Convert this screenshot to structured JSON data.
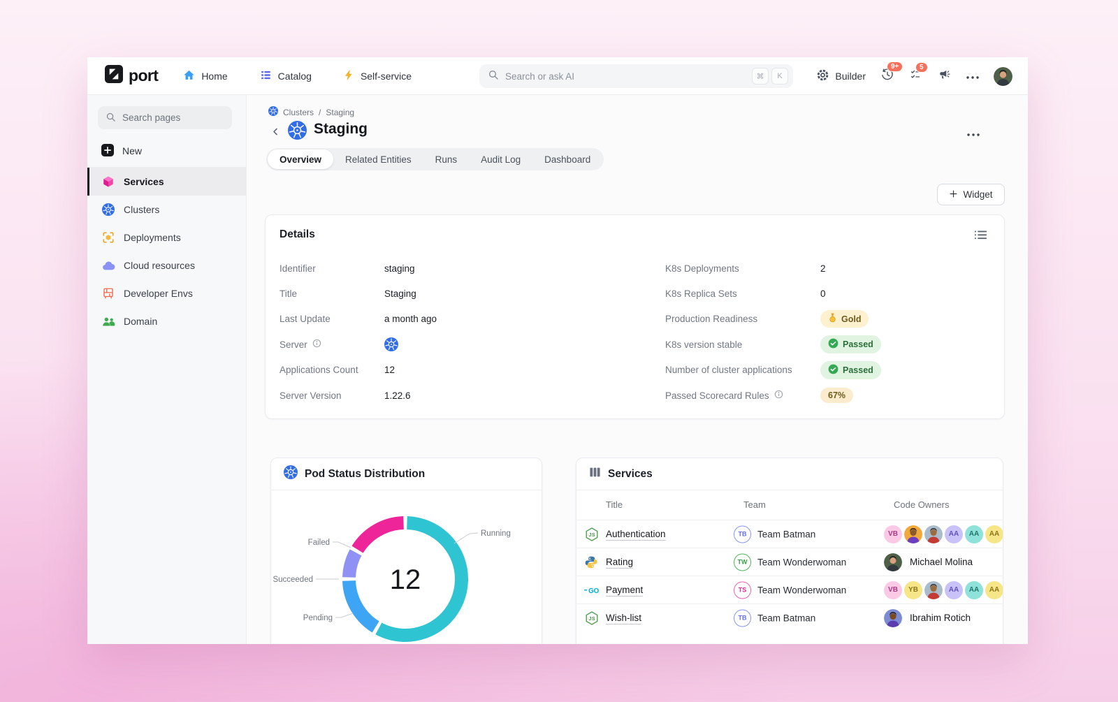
{
  "navbar": {
    "logo": "port",
    "nav_items": [
      {
        "label": "Home",
        "icon": "home-icon"
      },
      {
        "label": "Catalog",
        "icon": "catalog-icon"
      },
      {
        "label": "Self-service",
        "icon": "lightning-icon"
      }
    ],
    "search_placeholder": "Search or ask AI",
    "shortcut_keys": [
      "⌘",
      "K"
    ],
    "builder_label": "Builder",
    "history_badge": "9+",
    "tasks_badge": "5"
  },
  "sidebar": {
    "search_placeholder": "Search pages",
    "new_label": "New",
    "items": [
      {
        "label": "Services",
        "icon": "services-cube-icon",
        "active": true
      },
      {
        "label": "Clusters",
        "icon": "kubernetes-icon",
        "active": false
      },
      {
        "label": "Deployments",
        "icon": "deployments-icon",
        "active": false
      },
      {
        "label": "Cloud resources",
        "icon": "cloud-icon",
        "active": false
      },
      {
        "label": "Developer Envs",
        "icon": "rack-icon",
        "active": false
      },
      {
        "label": "Domain",
        "icon": "people-icon",
        "active": false
      }
    ]
  },
  "page": {
    "breadcrumb": {
      "root": "Clusters",
      "separator": "/",
      "current": "Staging"
    },
    "title": "Staging",
    "tabs": [
      {
        "label": "Overview",
        "active": true
      },
      {
        "label": "Related Entities",
        "active": false
      },
      {
        "label": "Runs",
        "active": false
      },
      {
        "label": "Audit Log",
        "active": false
      },
      {
        "label": "Dashboard",
        "active": false
      }
    ],
    "widget_button": "Widget"
  },
  "details": {
    "title": "Details",
    "left_fields": [
      {
        "label": "Identifier",
        "value": "staging",
        "type": "text",
        "info": false
      },
      {
        "label": "Title",
        "value": "Staging",
        "type": "text",
        "info": false
      },
      {
        "label": "Last Update",
        "value": "a month ago",
        "type": "text",
        "info": false
      },
      {
        "label": "Server",
        "value": "",
        "type": "k8s-icon",
        "info": true
      },
      {
        "label": "Applications Count",
        "value": "12",
        "type": "text",
        "info": false
      },
      {
        "label": "Server Version",
        "value": "1.22.6",
        "type": "text",
        "info": false
      }
    ],
    "right_fields": [
      {
        "label": "K8s Deployments",
        "value": "2",
        "type": "text",
        "info": false
      },
      {
        "label": "K8s Replica Sets",
        "value": "0",
        "type": "text",
        "info": false
      },
      {
        "label": "Production Readiness",
        "value": "Gold",
        "type": "badge-gold",
        "info": false
      },
      {
        "label": "K8s version stable",
        "value": "Passed",
        "type": "badge-passed",
        "info": false
      },
      {
        "label": "Number of cluster applications",
        "value": "Passed",
        "type": "badge-passed",
        "info": false
      },
      {
        "label": "Passed Scorecard Rules",
        "value": "67%",
        "type": "badge-pct",
        "info": true
      }
    ]
  },
  "chart_data": {
    "type": "pie",
    "donut": true,
    "title": "Pod Status Distribution",
    "total": 12,
    "total_label": "12",
    "legend_position": "callout-labels",
    "segments": [
      {
        "name": "Running",
        "value": 7,
        "color": "#2fc4d2"
      },
      {
        "name": "Pending",
        "value": 2,
        "color": "#3ea4f4"
      },
      {
        "name": "Succeeded",
        "value": 1,
        "color": "#8f92f4"
      },
      {
        "name": "Failed",
        "value": 2,
        "color": "#ee2599"
      }
    ]
  },
  "services": {
    "title": "Services",
    "columns": [
      "Title",
      "Team",
      "Code Owners"
    ],
    "rows": [
      {
        "icon": "nodejs-icon",
        "title": "Authentication",
        "team_initials": "TB",
        "team": "Team Batman",
        "team_color": "purple",
        "owners_type": "avatars",
        "owners": [
          {
            "type": "initials",
            "text": "VB",
            "bg": "#f9c9e6",
            "fg": "#a83a83"
          },
          {
            "type": "photo",
            "variant": "boy-yellow"
          },
          {
            "type": "photo",
            "variant": "man-red"
          },
          {
            "type": "initials",
            "text": "AA",
            "bg": "#c9c2f8",
            "fg": "#5f50bd"
          },
          {
            "type": "initials",
            "text": "AA",
            "bg": "#8fe2da",
            "fg": "#1f756c"
          },
          {
            "type": "initials",
            "text": "AA",
            "bg": "#f6e687",
            "fg": "#8b7519"
          }
        ]
      },
      {
        "icon": "python-icon",
        "title": "Rating",
        "team_initials": "TW",
        "team": "Team Wonderwoman",
        "team_color": "green",
        "owners_type": "single",
        "owner_name": "Michael Molina",
        "owners": [
          {
            "type": "photo",
            "variant": "woman-green"
          }
        ]
      },
      {
        "icon": "go-icon",
        "title": "Payment",
        "team_initials": "TS",
        "team": "Team Wonderwoman",
        "team_color": "pink",
        "owners_type": "avatars",
        "owners": [
          {
            "type": "initials",
            "text": "VB",
            "bg": "#f9c9e6",
            "fg": "#a83a83"
          },
          {
            "type": "initials",
            "text": "YB",
            "bg": "#f6e687",
            "fg": "#8b7519"
          },
          {
            "type": "photo",
            "variant": "man-red"
          },
          {
            "type": "initials",
            "text": "AA",
            "bg": "#c9c2f8",
            "fg": "#5f50bd"
          },
          {
            "type": "initials",
            "text": "AA",
            "bg": "#8fe2da",
            "fg": "#1f756c"
          },
          {
            "type": "initials",
            "text": "AA",
            "bg": "#f6e687",
            "fg": "#8b7519"
          }
        ]
      },
      {
        "icon": "nodejs-icon",
        "title": "Wish-list",
        "team_initials": "TB",
        "team": "Team Batman",
        "team_color": "purple",
        "owners_type": "single",
        "owner_name": "Ibrahim Rotich",
        "owners": [
          {
            "type": "photo",
            "variant": "boy-purple"
          }
        ]
      }
    ]
  },
  "colors": {
    "brand_black": "#17191d",
    "k8s_blue": "#326de6",
    "badge_red": "#f7705c",
    "active_tab_bg": "#ffffff",
    "gold_bg": "#fdf1cf",
    "passed_bg": "#e0f4e1",
    "percent_bg": "#fbeccd"
  }
}
